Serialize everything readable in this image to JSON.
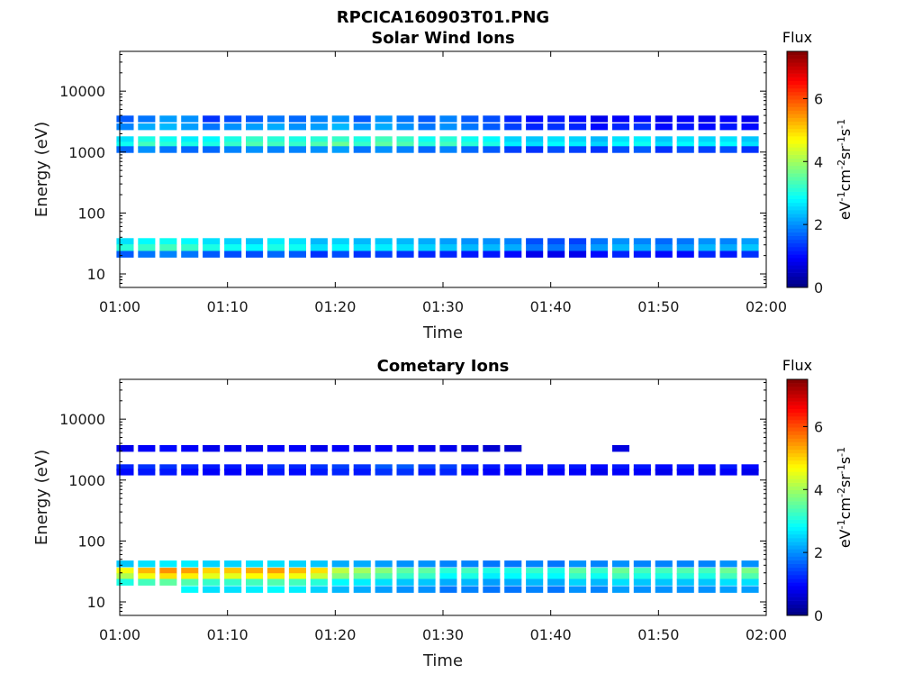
{
  "figure": {
    "filename": "RPCICA160903T01.PNG"
  },
  "colorbar": {
    "title": "Flux",
    "ticks": [
      "0",
      "2",
      "4",
      "6"
    ],
    "range": [
      0,
      7.5
    ],
    "colormap": "jet"
  },
  "chart_data": [
    {
      "type": "heatmap",
      "title": "Solar Wind Ions",
      "xlabel": "Time",
      "ylabel": "Energy (eV)",
      "x_ticks": [
        "01:00",
        "01:10",
        "01:20",
        "01:30",
        "01:40",
        "01:50",
        "02:00"
      ],
      "y_ticks": [
        "10",
        "100",
        "1000",
        "10000"
      ],
      "ylim": [
        6,
        45000
      ],
      "yscale": "log",
      "xlim": [
        "01:00",
        "02:00"
      ],
      "time_columns": [
        0.5,
        2.5,
        4.5,
        6.5,
        8.5,
        10.5,
        12.5,
        14.5,
        16.5,
        18.5,
        20.5,
        22.5,
        24.5,
        26.5,
        28.5,
        30.5,
        32.5,
        34.5,
        36.5,
        38.5,
        40.5,
        42.5,
        44.5,
        46.5,
        48.5,
        50.5,
        52.5,
        54.5,
        56.5,
        58.5
      ],
      "bands": [
        {
          "energy_eV": 3500,
          "values": [
            1.6,
            1.8,
            2.1,
            2.0,
            1.3,
            1.5,
            1.6,
            1.8,
            1.7,
            1.9,
            2.0,
            1.6,
            2.0,
            1.8,
            1.6,
            1.9,
            1.6,
            1.5,
            1.2,
            1.0,
            1.1,
            1.0,
            0.8,
            0.9,
            1.0,
            0.8,
            0.9,
            0.8,
            0.9,
            0.8
          ]
        },
        {
          "energy_eV": 2600,
          "values": [
            1.9,
            2.2,
            2.3,
            2.1,
            1.8,
            2.0,
            2.1,
            2.2,
            2.0,
            2.1,
            2.3,
            2.0,
            2.2,
            2.0,
            1.8,
            2.0,
            1.8,
            1.6,
            1.4,
            1.2,
            1.3,
            1.2,
            1.0,
            1.2,
            1.3,
            1.0,
            1.1,
            1.0,
            1.1,
            1.0
          ]
        },
        {
          "energy_eV": 1600,
          "values": [
            2.6,
            3.0,
            2.9,
            2.7,
            2.8,
            3.0,
            3.2,
            3.1,
            3.0,
            3.1,
            3.2,
            3.0,
            3.3,
            3.2,
            2.9,
            3.1,
            2.9,
            2.8,
            2.5,
            2.4,
            2.6,
            2.5,
            2.3,
            2.6,
            2.7,
            2.4,
            2.6,
            2.5,
            2.6,
            2.4
          ]
        },
        {
          "energy_eV": 1300,
          "values": [
            2.9,
            3.3,
            3.1,
            3.0,
            3.0,
            3.2,
            3.4,
            3.3,
            3.2,
            3.4,
            3.6,
            3.2,
            3.5,
            3.4,
            3.1,
            3.3,
            3.1,
            3.0,
            2.7,
            2.6,
            2.8,
            2.7,
            2.5,
            2.8,
            2.9,
            2.6,
            2.8,
            2.7,
            2.8,
            2.6
          ]
        },
        {
          "energy_eV": 1100,
          "values": [
            1.7,
            2.0,
            1.8,
            1.7,
            1.7,
            1.9,
            2.0,
            1.9,
            1.9,
            2.0,
            2.1,
            1.8,
            2.0,
            1.9,
            1.7,
            1.9,
            1.7,
            1.6,
            1.4,
            1.3,
            1.5,
            1.4,
            1.3,
            1.5,
            1.6,
            1.3,
            1.5,
            1.4,
            1.5,
            1.3
          ]
        },
        {
          "energy_eV": 34,
          "values": [
            2.6,
            2.8,
            2.9,
            2.8,
            2.6,
            2.5,
            2.4,
            2.7,
            2.6,
            2.3,
            2.5,
            2.3,
            2.4,
            2.3,
            2.2,
            2.1,
            2.0,
            2.0,
            1.9,
            1.5,
            1.5,
            1.4,
            1.8,
            2.0,
            1.9,
            1.7,
            1.8,
            2.0,
            1.9,
            2.1
          ]
        },
        {
          "energy_eV": 27,
          "values": [
            3.1,
            3.2,
            3.3,
            3.2,
            3.0,
            2.9,
            2.8,
            3.0,
            2.9,
            2.6,
            2.8,
            2.6,
            2.7,
            2.6,
            2.5,
            2.4,
            2.3,
            2.3,
            2.2,
            1.8,
            1.8,
            1.7,
            2.1,
            2.3,
            2.2,
            2.0,
            2.1,
            2.3,
            2.2,
            2.4
          ]
        },
        {
          "energy_eV": 21,
          "values": [
            1.6,
            1.8,
            1.9,
            1.8,
            1.6,
            1.5,
            1.5,
            1.7,
            1.6,
            1.3,
            1.5,
            1.3,
            1.4,
            1.3,
            1.2,
            1.2,
            1.1,
            1.1,
            1.0,
            0.8,
            0.8,
            0.8,
            1.0,
            1.2,
            1.1,
            1.0,
            1.0,
            1.2,
            1.1,
            1.3
          ]
        }
      ]
    },
    {
      "type": "heatmap",
      "title": "Cometary Ions",
      "xlabel": "Time",
      "ylabel": "Energy (eV)",
      "x_ticks": [
        "01:00",
        "01:10",
        "01:20",
        "01:30",
        "01:40",
        "01:50",
        "02:00"
      ],
      "y_ticks": [
        "10",
        "100",
        "1000",
        "10000"
      ],
      "ylim": [
        6,
        45000
      ],
      "yscale": "log",
      "xlim": [
        "01:00",
        "02:00"
      ],
      "time_columns": [
        0.5,
        2.5,
        4.5,
        6.5,
        8.5,
        10.5,
        12.5,
        14.5,
        16.5,
        18.5,
        20.5,
        22.5,
        24.5,
        26.5,
        28.5,
        30.5,
        32.5,
        34.5,
        36.5,
        38.5,
        40.5,
        42.5,
        44.5,
        46.5,
        48.5,
        50.5,
        52.5,
        54.5,
        56.5,
        58.5
      ],
      "bands": [
        {
          "energy_eV": 3300,
          "values": [
            0.8,
            0.9,
            1.0,
            0.9,
            0.8,
            0.8,
            0.8,
            0.9,
            0.9,
            0.8,
            0.9,
            0.8,
            0.9,
            0.9,
            0.8,
            0.8,
            0.7,
            0.6,
            0.6,
            0.0,
            0.0,
            0.0,
            0.0,
            0.7,
            0.0,
            0.0,
            0.0,
            0.0,
            0.0,
            0.0
          ]
        },
        {
          "energy_eV": 1600,
          "values": [
            1.2,
            1.3,
            1.3,
            1.2,
            1.1,
            1.1,
            1.1,
            1.3,
            1.2,
            1.3,
            1.4,
            1.3,
            1.6,
            1.6,
            1.4,
            1.4,
            1.2,
            1.1,
            1.1,
            1.1,
            1.1,
            1.1,
            1.0,
            1.1,
            1.1,
            1.0,
            1.1,
            1.0,
            1.1,
            1.0
          ]
        },
        {
          "energy_eV": 1350,
          "values": [
            1.0,
            1.1,
            1.1,
            1.0,
            0.9,
            0.9,
            0.9,
            1.1,
            1.0,
            1.1,
            1.2,
            1.1,
            1.3,
            1.3,
            1.1,
            1.2,
            1.0,
            0.9,
            0.9,
            0.9,
            0.9,
            0.9,
            0.8,
            0.9,
            0.9,
            0.8,
            0.9,
            0.8,
            0.9,
            0.8
          ]
        },
        {
          "energy_eV": 42,
          "values": [
            2.4,
            2.6,
            2.7,
            2.7,
            2.5,
            2.5,
            2.6,
            2.6,
            2.5,
            2.4,
            2.2,
            2.2,
            2.1,
            2.0,
            2.0,
            1.9,
            1.9,
            1.8,
            1.8,
            1.9,
            1.8,
            2.0,
            1.9,
            2.0,
            1.9,
            1.9,
            1.9,
            1.9,
            2.0,
            2.0
          ]
        },
        {
          "energy_eV": 32,
          "values": [
            4.6,
            5.2,
            5.5,
            5.4,
            5.0,
            5.1,
            5.3,
            5.4,
            5.2,
            4.9,
            4.2,
            4.0,
            3.8,
            3.5,
            3.5,
            3.1,
            3.3,
            3.0,
            3.0,
            3.2,
            3.0,
            3.5,
            3.2,
            3.6,
            3.3,
            3.3,
            3.4,
            3.3,
            3.6,
            3.7
          ]
        },
        {
          "energy_eV": 26,
          "values": [
            4.1,
            4.6,
            4.9,
            4.8,
            4.5,
            4.5,
            4.7,
            4.8,
            4.6,
            4.3,
            3.8,
            3.6,
            3.4,
            3.2,
            3.2,
            2.8,
            3.0,
            2.7,
            2.8,
            2.9,
            2.8,
            3.2,
            2.9,
            3.3,
            3.0,
            3.0,
            3.1,
            3.0,
            3.3,
            3.4
          ]
        },
        {
          "energy_eV": 21,
          "values": [
            3.0,
            3.3,
            3.5,
            3.4,
            3.2,
            3.2,
            3.3,
            3.4,
            3.3,
            3.1,
            2.8,
            2.7,
            2.6,
            2.4,
            2.4,
            2.2,
            2.3,
            2.1,
            2.2,
            2.3,
            2.2,
            2.5,
            2.3,
            2.6,
            2.4,
            2.4,
            2.4,
            2.4,
            2.6,
            2.6
          ]
        },
        {
          "energy_eV": 16,
          "values": [
            0.0,
            0.0,
            0.0,
            2.8,
            2.6,
            2.6,
            2.7,
            2.8,
            2.7,
            2.5,
            2.3,
            2.2,
            2.1,
            2.0,
            2.0,
            1.8,
            1.9,
            1.8,
            1.8,
            1.9,
            1.8,
            2.0,
            1.9,
            2.1,
            2.0,
            2.0,
            2.0,
            2.0,
            2.1,
            2.1
          ]
        }
      ]
    }
  ]
}
